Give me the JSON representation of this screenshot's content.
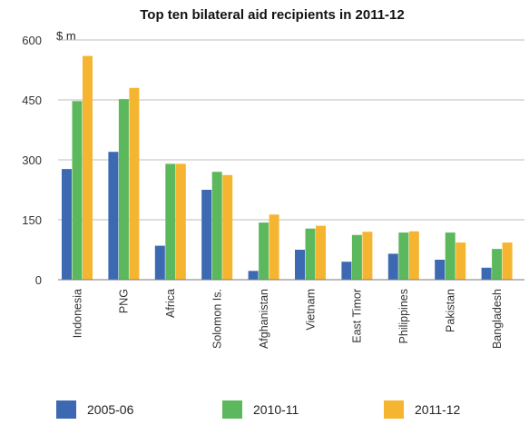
{
  "chart_data": {
    "type": "bar",
    "title": "Top ten bilateral aid recipients in 2011-12",
    "unit_label": "$ m",
    "xlabel": "",
    "ylabel": "",
    "ylim": [
      0,
      600
    ],
    "yticks": [
      "0",
      "150",
      "300",
      "450",
      "600"
    ],
    "grid": true,
    "legend_position": "bottom",
    "categories": [
      "Indonesia",
      "PNG",
      "Africa",
      "Solomon Is.",
      "Afghanistan",
      "Vietnam",
      "East Timor",
      "Philippines",
      "Pakistan",
      "Bangladesh"
    ],
    "series": [
      {
        "name": "2005-06",
        "color": "#3d69b3",
        "values": [
          277,
          320,
          85,
          225,
          22,
          75,
          45,
          65,
          50,
          30
        ]
      },
      {
        "name": "2010-11",
        "color": "#5cb85c",
        "values": [
          447,
          452,
          290,
          270,
          143,
          128,
          112,
          118,
          118,
          77
        ]
      },
      {
        "name": "2011-12",
        "color": "#f5b530",
        "values": [
          560,
          480,
          290,
          262,
          163,
          135,
          120,
          121,
          93,
          93
        ]
      }
    ]
  }
}
